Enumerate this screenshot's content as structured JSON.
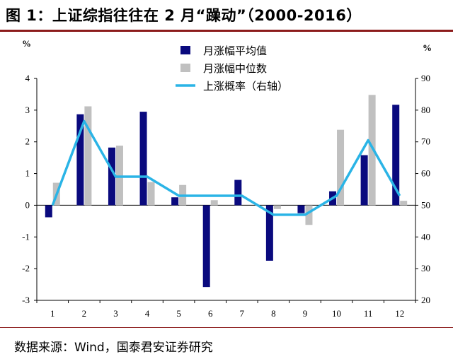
{
  "header": {
    "title": "图 1：上证综指往往在 2 月“躁动”（2000-2016）"
  },
  "footer": {
    "source": "数据来源：Wind，国泰君安证券研究"
  },
  "chart_data": {
    "type": "bar",
    "categories": [
      "1",
      "2",
      "3",
      "4",
      "5",
      "6",
      "7",
      "8",
      "9",
      "10",
      "11",
      "12"
    ],
    "series": [
      {
        "name": "月涨幅平均值",
        "type": "bar",
        "axis": "left",
        "values": [
          -0.38,
          2.87,
          1.82,
          2.95,
          0.25,
          -2.58,
          0.8,
          -1.75,
          -0.25,
          0.44,
          1.58,
          3.17
        ]
      },
      {
        "name": "月涨幅中位数",
        "type": "bar",
        "axis": "left",
        "values": [
          0.71,
          3.12,
          1.88,
          0.73,
          0.64,
          0.16,
          0.0,
          -0.12,
          -0.62,
          2.38,
          3.48,
          0.14
        ]
      },
      {
        "name": "上涨概率（右轴）",
        "type": "line",
        "axis": "right",
        "values": [
          50,
          76.5,
          59,
          59,
          53,
          53,
          53,
          47,
          47,
          53,
          70.5,
          53
        ]
      }
    ],
    "left_axis": {
      "unit": "%",
      "min": -3,
      "max": 4,
      "ticks": [
        "4",
        "3",
        "2",
        "1",
        "0",
        "-1",
        "-2",
        "-3"
      ]
    },
    "right_axis": {
      "unit": "%",
      "min": 20,
      "max": 90,
      "ticks": [
        "90",
        "80",
        "70",
        "60",
        "50",
        "40",
        "30",
        "20"
      ]
    },
    "legend": "top-right",
    "grid": false,
    "colors": {
      "mean": "#0a0a7e",
      "median": "#c0c0c0",
      "probability": "#2ab4e6"
    }
  }
}
